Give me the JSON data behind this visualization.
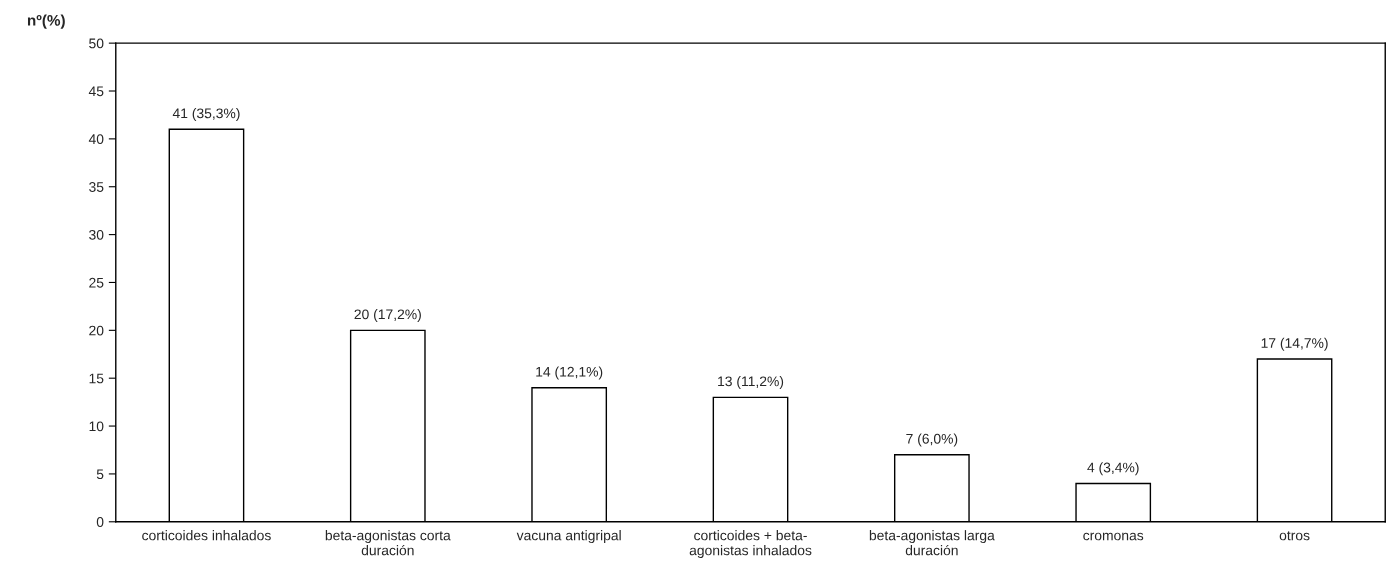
{
  "chart_data": {
    "type": "bar",
    "ylabel": "nº(%)",
    "categories": [
      "corticoides inhalados",
      "beta-agonistas corta\nduración",
      "vacuna antigripal",
      "corticoides + beta-\nagonistas inhalados",
      "beta-agonistas larga\nduración",
      "cromonas",
      "otros"
    ],
    "values": [
      41,
      20,
      14,
      13,
      7,
      4,
      17
    ],
    "value_labels": [
      "41 (35,3%)",
      "20 (17,2%)",
      "14 (12,1%)",
      "13 (11,2%)",
      "7 (6,0%)",
      "4 (3,4%)",
      "17 (14,7%)"
    ],
    "color": "#ffffff",
    "ylim": [
      0,
      50
    ],
    "yticks": [
      0,
      5,
      10,
      15,
      20,
      25,
      30,
      35,
      40,
      45,
      50
    ],
    "grid": false,
    "legend": false
  }
}
